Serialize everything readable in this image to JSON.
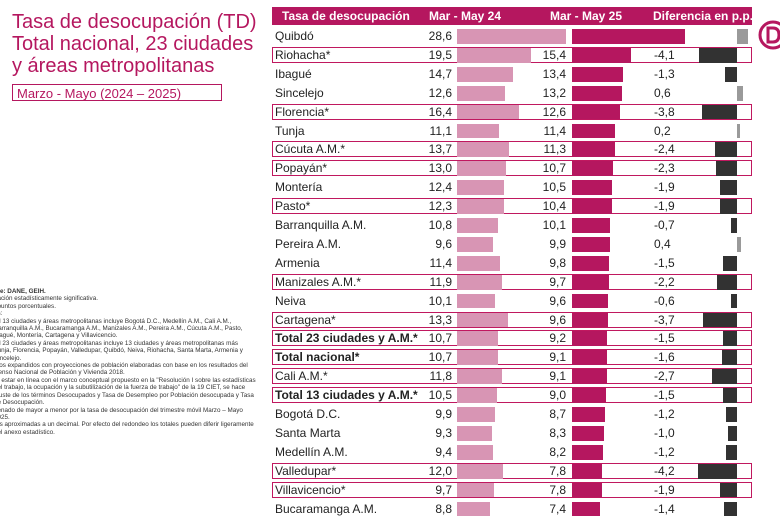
{
  "title": "Tasa de desocupación (TD) Total nacional, 23 ciudades y áreas metropolitanas",
  "period": "Marzo - Mayo (2024 – 2025)",
  "notes": [
    "nte: DANE, GEIH.",
    "riación estadísticamente significativa.",
    ". puntos porcentuales.",
    "as:",
    "tal 13 ciudades y áreas metropolitanas incluye Bogotá D.C., Medellín A.M., Cali A.M., Barranquilla A.M., Bucaramanga A.M., Manizales A.M., Pereira A.M., Cúcuta A.M., Pasto, Ibagué, Montería, Cartagena y Villavicencio.",
    "tal 23 ciudades y áreas metropolitanas incluye 13 ciudades y áreas metropolitanas más Tunja, Florencia, Popayán, Valledupar, Quibdó, Neiva, Riohacha, Santa Marta, Armenia y Sincelejo.",
    "atos expandidos con proyecciones de población elaboradas con base en los resultados del Censo Nacional de Población y Vivienda 2018.",
    "ra estar en línea con el marco conceptual propuesto en la \"Resolución I sobre las estadísticas del trabajo, la ocupación y la subutilización de la fuerza de trabajo\" de la 19 CIET, se hace ajuste de los términos Desocupados y Tasa de Desempleo por Población desocupada y Tasa de Desocupación.",
    "denado de mayor a menor por la tasa de desocupación del trimestre móvil Marzo – Mayo 2025.",
    "ras aproximadas a un decimal. Por efecto del redondeo los totales pueden diferir ligeramente del anexo estadístico."
  ],
  "colors": {
    "accent": "#b5175f",
    "bar_2024": "#d895b4",
    "bar_2025": "#b5175f",
    "bar_diff_negative": "#323232",
    "bar_diff_positive": "#9a9a9a"
  },
  "chart_data": {
    "type": "table",
    "columns": [
      "Tasa de desocupación",
      "Mar - May 24",
      "Mar - May 25",
      "Diferencia en p.p."
    ],
    "rows": [
      {
        "name": "Quibdó",
        "v24": "28,6",
        "v25": "29,8",
        "diff": "1,2",
        "highlight": false,
        "bold": false
      },
      {
        "name": "Riohacha*",
        "v24": "19,5",
        "v25": "15,4",
        "diff": "-4,1",
        "highlight": true,
        "bold": false
      },
      {
        "name": "Ibagué",
        "v24": "14,7",
        "v25": "13,4",
        "diff": "-1,3",
        "highlight": false,
        "bold": false
      },
      {
        "name": "Sincelejo",
        "v24": "12,6",
        "v25": "13,2",
        "diff": "0,6",
        "highlight": false,
        "bold": false
      },
      {
        "name": "Florencia*",
        "v24": "16,4",
        "v25": "12,6",
        "diff": "-3,8",
        "highlight": true,
        "bold": false
      },
      {
        "name": "Tunja",
        "v24": "11,1",
        "v25": "11,4",
        "diff": "0,2",
        "highlight": false,
        "bold": false
      },
      {
        "name": "Cúcuta A.M.*",
        "v24": "13,7",
        "v25": "11,3",
        "diff": "-2,4",
        "highlight": true,
        "bold": false
      },
      {
        "name": "Popayán*",
        "v24": "13,0",
        "v25": "10,7",
        "diff": "-2,3",
        "highlight": true,
        "bold": false
      },
      {
        "name": "Montería",
        "v24": "12,4",
        "v25": "10,5",
        "diff": "-1,9",
        "highlight": false,
        "bold": false
      },
      {
        "name": "Pasto*",
        "v24": "12,3",
        "v25": "10,4",
        "diff": "-1,9",
        "highlight": true,
        "bold": false
      },
      {
        "name": "Barranquilla A.M.",
        "v24": "10,8",
        "v25": "10,1",
        "diff": "-0,7",
        "highlight": false,
        "bold": false
      },
      {
        "name": "Pereira A.M.",
        "v24": "9,6",
        "v25": "9,9",
        "diff": "0,4",
        "highlight": false,
        "bold": false
      },
      {
        "name": "Armenia",
        "v24": "11,4",
        "v25": "9,8",
        "diff": "-1,5",
        "highlight": false,
        "bold": false
      },
      {
        "name": "Manizales A.M.*",
        "v24": "11,9",
        "v25": "9,7",
        "diff": "-2,2",
        "highlight": true,
        "bold": false
      },
      {
        "name": "Neiva",
        "v24": "10,1",
        "v25": "9,6",
        "diff": "-0,6",
        "highlight": false,
        "bold": false
      },
      {
        "name": "Cartagena*",
        "v24": "13,3",
        "v25": "9,6",
        "diff": "-3,7",
        "highlight": true,
        "bold": false
      },
      {
        "name": "Total 23 ciudades y A.M.*",
        "v24": "10,7",
        "v25": "9,2",
        "diff": "-1,5",
        "highlight": true,
        "bold": true
      },
      {
        "name": "Total nacional*",
        "v24": "10,7",
        "v25": "9,1",
        "diff": "-1,6",
        "highlight": true,
        "bold": true
      },
      {
        "name": "Cali A.M.*",
        "v24": "11,8",
        "v25": "9,1",
        "diff": "-2,7",
        "highlight": true,
        "bold": false
      },
      {
        "name": "Total 13 ciudades y A.M.*",
        "v24": "10,5",
        "v25": "9,0",
        "diff": "-1,5",
        "highlight": true,
        "bold": true
      },
      {
        "name": "Bogotá D.C.",
        "v24": "9,9",
        "v25": "8,7",
        "diff": "-1,2",
        "highlight": false,
        "bold": false
      },
      {
        "name": "Santa Marta",
        "v24": "9,3",
        "v25": "8,3",
        "diff": "-1,0",
        "highlight": false,
        "bold": false
      },
      {
        "name": "Medellín A.M.",
        "v24": "9,4",
        "v25": "8,2",
        "diff": "-1,2",
        "highlight": false,
        "bold": false
      },
      {
        "name": "Valledupar*",
        "v24": "12,0",
        "v25": "7,8",
        "diff": "-4,2",
        "highlight": true,
        "bold": false
      },
      {
        "name": "Villavicencio*",
        "v24": "9,7",
        "v25": "7,8",
        "diff": "-1,9",
        "highlight": true,
        "bold": false
      },
      {
        "name": "Bucaramanga A.M.",
        "v24": "8,8",
        "v25": "7,4",
        "diff": "-1,4",
        "highlight": false,
        "bold": false
      }
    ]
  }
}
